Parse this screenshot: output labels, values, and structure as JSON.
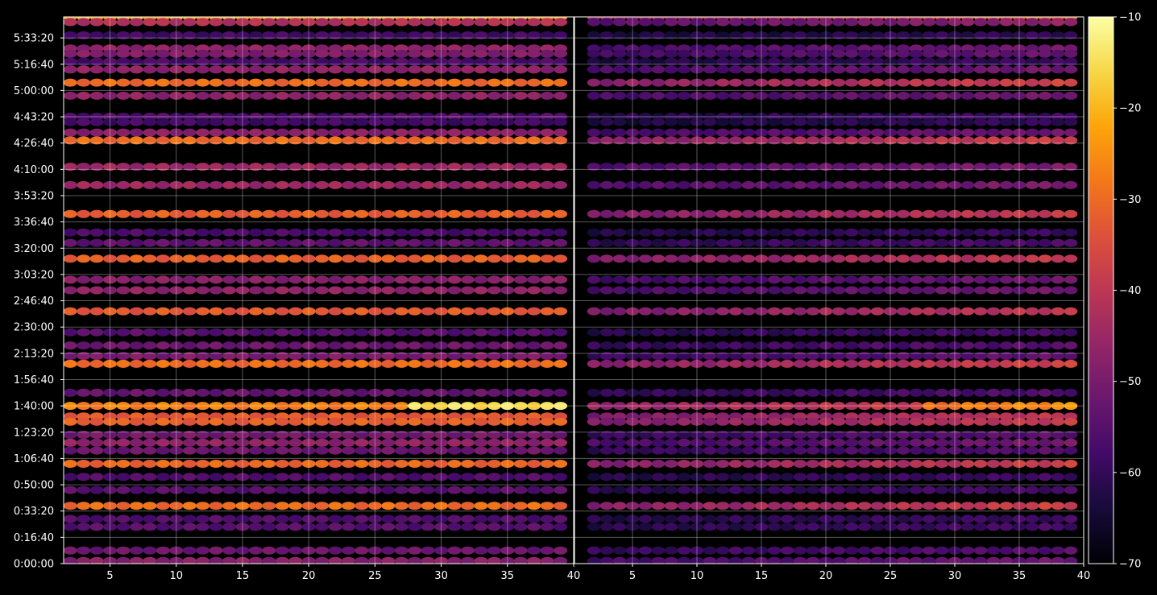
{
  "chart_data": {
    "type": "heatmap",
    "colormap": "inferno",
    "background": "#000000",
    "foreground": "#ffffff",
    "panels": [
      {
        "name": "left",
        "xlim": [
          1.5,
          40
        ],
        "x_ticks": [
          5,
          10,
          15,
          20,
          25,
          30,
          35,
          40
        ],
        "peak_intensity": 1.0,
        "rise": 0.0
      },
      {
        "name": "right",
        "xlim": [
          0.5,
          40
        ],
        "x_ticks": [
          5,
          10,
          15,
          20,
          25,
          30,
          35,
          40
        ],
        "peak_intensity": 0.82,
        "rise": 0.75
      }
    ],
    "y_axis": {
      "range_seconds": [
        0,
        20800
      ],
      "ticks": [
        {
          "value": 0,
          "label": "0:00:00"
        },
        {
          "value": 1000,
          "label": "0:16:40"
        },
        {
          "value": 2000,
          "label": "0:33:20"
        },
        {
          "value": 3000,
          "label": "0:50:00"
        },
        {
          "value": 4000,
          "label": "1:06:40"
        },
        {
          "value": 5000,
          "label": "1:23:20"
        },
        {
          "value": 6000,
          "label": "1:40:00"
        },
        {
          "value": 7000,
          "label": "1:56:40"
        },
        {
          "value": 8000,
          "label": "2:13:20"
        },
        {
          "value": 9000,
          "label": "2:30:00"
        },
        {
          "value": 10000,
          "label": "2:46:40"
        },
        {
          "value": 11000,
          "label": "3:03:20"
        },
        {
          "value": 12000,
          "label": "3:20:00"
        },
        {
          "value": 13000,
          "label": "3:36:40"
        },
        {
          "value": 14000,
          "label": "3:53:20"
        },
        {
          "value": 15000,
          "label": "4:10:00"
        },
        {
          "value": 16000,
          "label": "4:26:40"
        },
        {
          "value": 17000,
          "label": "4:43:20"
        },
        {
          "value": 18000,
          "label": "5:00:00"
        },
        {
          "value": 19000,
          "label": "5:16:40"
        },
        {
          "value": 20000,
          "label": "5:33:20"
        }
      ]
    },
    "colorbar": {
      "range": [
        -70,
        -10
      ],
      "ticks": [
        -10,
        -20,
        -30,
        -40,
        -50,
        -60,
        -70
      ],
      "tick_labels": [
        "−10",
        "−20",
        "−30",
        "−40",
        "−50",
        "−60",
        "−70"
      ]
    },
    "grid": true,
    "x_values": [
      2,
      3,
      4,
      5,
      6,
      7,
      8,
      9,
      10,
      11,
      12,
      13,
      14,
      15,
      16,
      17,
      18,
      19,
      20,
      21,
      22,
      23,
      24,
      25,
      26,
      27,
      28,
      29,
      30,
      31,
      32,
      33,
      34,
      35,
      36,
      37,
      38,
      39
    ],
    "rows": [
      {
        "t": 20800,
        "level": -22
      },
      {
        "t": 20600,
        "level": -42
      },
      {
        "t": 20100,
        "level": -58
      },
      {
        "t": 19600,
        "level": -47
      },
      {
        "t": 19400,
        "level": -49
      },
      {
        "t": 19100,
        "level": -57
      },
      {
        "t": 18800,
        "level": -47
      },
      {
        "t": 18300,
        "level": -30
      },
      {
        "t": 17800,
        "level": -47
      },
      {
        "t": 17000,
        "level": -56
      },
      {
        "t": 16800,
        "level": -58
      },
      {
        "t": 16400,
        "level": -48
      },
      {
        "t": 16100,
        "level": -30
      },
      {
        "t": 15100,
        "level": -45
      },
      {
        "t": 14400,
        "level": -45
      },
      {
        "t": 13300,
        "level": -32
      },
      {
        "t": 12600,
        "level": -57
      },
      {
        "t": 12200,
        "level": -54
      },
      {
        "t": 11600,
        "level": -32
      },
      {
        "t": 10800,
        "level": -48
      },
      {
        "t": 10400,
        "level": -47
      },
      {
        "t": 9600,
        "level": -33
      },
      {
        "t": 8800,
        "level": -55
      },
      {
        "t": 8300,
        "level": -52
      },
      {
        "t": 7900,
        "level": -50
      },
      {
        "t": 7600,
        "level": -30
      },
      {
        "t": 6500,
        "level": -53
      },
      {
        "t": 6000,
        "level": -27,
        "rise": [
          28,
          39
        ],
        "rise_to": -15
      },
      {
        "t": 5600,
        "level": -33
      },
      {
        "t": 5400,
        "level": -32
      },
      {
        "t": 4900,
        "level": -51
      },
      {
        "t": 4600,
        "level": -47
      },
      {
        "t": 4300,
        "level": -52
      },
      {
        "t": 3800,
        "level": -31
      },
      {
        "t": 3300,
        "level": -56
      },
      {
        "t": 2800,
        "level": -55
      },
      {
        "t": 2200,
        "level": -30
      },
      {
        "t": 1700,
        "level": -56
      },
      {
        "t": 1400,
        "level": -55
      },
      {
        "t": 500,
        "level": -52
      },
      {
        "t": 100,
        "level": -48
      }
    ]
  }
}
